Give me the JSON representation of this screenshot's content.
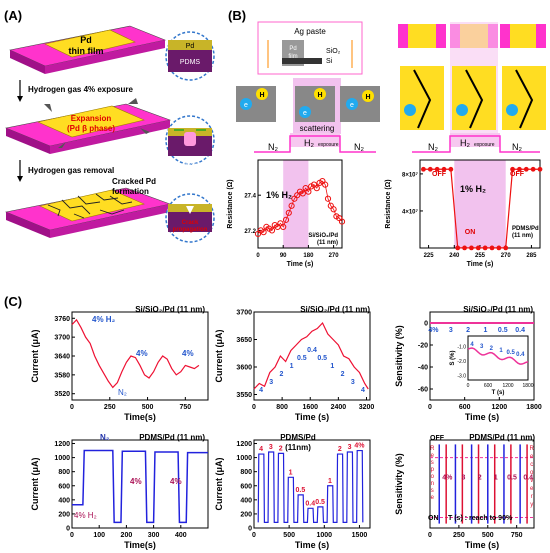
{
  "panels": {
    "A": "(A)",
    "B": "(B)",
    "C": "(C)"
  },
  "panelA": {
    "pdms": "PDMS",
    "pd_film": [
      "Pd",
      "thin film"
    ],
    "zoom_pd": "Pd",
    "zoom_pdms": "PDMS",
    "step1": "Hydrogen gas 4% exposure",
    "expansion": [
      "Expansion",
      "(Pd β phase)"
    ],
    "strain": [
      "Strain",
      "localization"
    ],
    "step2": "Hydrogen gas removal",
    "cracked": [
      "Cracked Pd",
      "formation"
    ],
    "crack_prop": [
      "Crack",
      "propagation"
    ]
  },
  "panelB": {
    "ag_paste": "Ag paste",
    "pd_film": [
      "Pd",
      "film"
    ],
    "sio2": "SiO₂",
    "si": "Si",
    "scattering": "scattering",
    "e": "e",
    "h": "H",
    "n2": "N₂",
    "h2_exposure": "H₂",
    "exposure_sub": "exposure",
    "left_chart": {
      "ylabel": "Resistance (Ω)",
      "xlabel": "Time (s)",
      "annotation": "1% H₂",
      "sample": [
        "Si/SiO₂/Pd",
        "(11 nm)"
      ]
    },
    "right_chart": {
      "ylabel": "Resistance (Ω)",
      "xlabel": "Time (s)",
      "annotation": "1% H₂",
      "off": "OFF",
      "on": "ON",
      "sample": [
        "PDMS/Pd",
        "(11 nm)"
      ]
    }
  },
  "panelC": {
    "c1": {
      "title": "Si/SiO₂/Pd (11 nm)",
      "ylabel": "Current (μA)",
      "xlabel": "Time(s)",
      "h2": "4% H₂",
      "n2": "N₂",
      "pct": "4%"
    },
    "c2": {
      "title": "Si/SiO₂/Pd (11 nm)",
      "ylabel": "Current (μA)",
      "xlabel": "Time (s)"
    },
    "c3": {
      "title": "Si/SiO₂/Pd (11 nm)",
      "ylabel": "Sensitivity (%)",
      "xlabel": "Time (s)",
      "inset_ylabel": "S (%)",
      "inset_xlabel": "T (s)"
    },
    "c4": {
      "title": "PDMS/Pd (11 nm)",
      "ylabel": "Current (μA)",
      "xlabel": "Time(s)",
      "n2": "N₂",
      "h2": "4% H₂",
      "pct": "4%"
    },
    "c5": {
      "title": "PDMS/Pd",
      "title2": "(11nm)",
      "ylabel": "Current (μA)",
      "xlabel": "Time (s)"
    },
    "c6": {
      "title": "PDMS/Pd (11 nm)",
      "off": "OFF",
      "on": "ON",
      "ylabel": "Sensitivity (%)",
      "xlabel": "Time (s)",
      "note": "T (s) : reach to 90%",
      "response": "Response",
      "recovery": "Recovery"
    }
  },
  "chart_data": [
    {
      "type": "scatter",
      "xlabel": "Time (s)",
      "ylabel": "Resistance (Ω)",
      "xlim": [
        0,
        300
      ],
      "ylim": [
        27.1,
        27.6
      ],
      "x_ticks": [
        0,
        90,
        180,
        270
      ],
      "y_ticks": [
        27.2,
        27.4
      ],
      "x": [
        0,
        10,
        20,
        30,
        40,
        50,
        60,
        70,
        80,
        90,
        100,
        110,
        120,
        130,
        140,
        150,
        160,
        170,
        180,
        190,
        200,
        210,
        220,
        230,
        240,
        250,
        260,
        270,
        280,
        290,
        300
      ],
      "y": [
        27.18,
        27.2,
        27.19,
        27.22,
        27.21,
        27.2,
        27.23,
        27.22,
        27.24,
        27.22,
        27.26,
        27.3,
        27.34,
        27.38,
        27.4,
        27.42,
        27.41,
        27.44,
        27.42,
        27.45,
        27.46,
        27.44,
        27.47,
        27.48,
        27.46,
        27.38,
        27.34,
        27.32,
        27.28,
        27.27,
        27.25
      ]
    },
    {
      "type": "scatter",
      "xlabel": "Time (s)",
      "ylabel": "Resistance (Ω)",
      "xlim": [
        220,
        290
      ],
      "ylim": [
        0,
        95000000.0
      ],
      "x_ticks": [
        225,
        240,
        255,
        270,
        285
      ],
      "y_ticks": [
        40000000.0,
        80000000.0
      ],
      "x": [
        222,
        226,
        230,
        234,
        238,
        242,
        246,
        250,
        254,
        258,
        262,
        266,
        270,
        274,
        278,
        282,
        286,
        290
      ],
      "y": [
        85000000.0,
        85000000.0,
        85000000.0,
        85000000.0,
        85000000.0,
        100000.0,
        100000.0,
        100000.0,
        100000.0,
        100000.0,
        100000.0,
        100000.0,
        100000.0,
        85000000.0,
        85000000.0,
        85000000.0,
        85000000.0,
        85000000.0
      ]
    },
    {
      "type": "line",
      "xlabel": "Time(s)",
      "ylabel": "Current (μA)",
      "xlim": [
        0,
        900
      ],
      "ylim": [
        3500,
        3780
      ],
      "x_ticks": [
        0,
        250,
        500,
        750
      ],
      "y_ticks": [
        3520,
        3580,
        3640,
        3700,
        3760
      ],
      "x": [
        0,
        30,
        60,
        90,
        120,
        150,
        180,
        210,
        240,
        270,
        300,
        330,
        360,
        390,
        420,
        450,
        480,
        510,
        540,
        570,
        600,
        630,
        660,
        690,
        720,
        750,
        780,
        810,
        840
      ],
      "y": [
        3740,
        3755,
        3730,
        3700,
        3680,
        3640,
        3610,
        3585,
        3560,
        3540,
        3555,
        3590,
        3620,
        3640,
        3635,
        3610,
        3580,
        3570,
        3590,
        3620,
        3640,
        3630,
        3600,
        3580,
        3590,
        3610,
        3605,
        3600,
        3610
      ]
    },
    {
      "type": "line",
      "xlabel": "Time (s)",
      "ylabel": "Current (μA)",
      "xlim": [
        0,
        3300
      ],
      "ylim": [
        3540,
        3700
      ],
      "x_ticks": [
        0,
        800,
        1600,
        2400,
        3200
      ],
      "y_ticks": [
        3550,
        3600,
        3650,
        3700
      ],
      "x": [
        0,
        150,
        300,
        450,
        600,
        750,
        900,
        1050,
        1200,
        1350,
        1500,
        1650,
        1800,
        1950,
        2100,
        2250,
        2400,
        2550,
        2700,
        2850,
        3000,
        3150,
        3250
      ],
      "y": [
        3560,
        3570,
        3565,
        3590,
        3600,
        3620,
        3610,
        3630,
        3640,
        3650,
        3655,
        3665,
        3670,
        3680,
        3660,
        3650,
        3640,
        3620,
        3615,
        3600,
        3590,
        3570,
        3560
      ],
      "labels": [
        "4",
        "3",
        "2",
        "1",
        "0.5",
        "0.4",
        "0.5",
        "1",
        "2",
        "3",
        "4"
      ]
    },
    {
      "type": "line",
      "xlabel": "Time (s)",
      "ylabel": "Sensitivity (%)",
      "xlim": [
        0,
        1800
      ],
      "ylim": [
        -70,
        10
      ],
      "x_ticks": [
        0,
        600,
        1200,
        1800
      ],
      "y_ticks": [
        -60,
        -40,
        -20,
        0
      ],
      "labels": [
        "4%",
        "3",
        "2",
        "1",
        "0.5",
        "0.4"
      ],
      "inset": {
        "xlabel": "T (s)",
        "ylabel": "S (%)",
        "x_ticks": [
          0,
          600,
          1200,
          1800
        ],
        "y_ticks": [
          -3.0,
          -2.0,
          -1.0
        ],
        "labels": [
          "4",
          "3",
          "2",
          "1",
          "0.5",
          "0.4"
        ]
      }
    },
    {
      "type": "line",
      "xlabel": "Time(s)",
      "ylabel": "Current (μA)",
      "xlim": [
        0,
        500
      ],
      "ylim": [
        0,
        1250
      ],
      "x_ticks": [
        0,
        100,
        200,
        300,
        400
      ],
      "y_ticks": [
        0,
        200,
        400,
        600,
        800,
        1000,
        1200
      ]
    },
    {
      "type": "line",
      "xlabel": "Time (s)",
      "ylabel": "Current (μA)",
      "xlim": [
        0,
        1650
      ],
      "ylim": [
        0,
        1250
      ],
      "x_ticks": [
        0,
        500,
        1000,
        1500
      ],
      "y_ticks": [
        0,
        200,
        400,
        600,
        800,
        1000,
        1200
      ],
      "labels": [
        "4",
        "3",
        "2",
        "1",
        "0.5",
        "0.4",
        "0.5",
        "1",
        "2",
        "3",
        "4%"
      ]
    },
    {
      "type": "line",
      "xlabel": "Time (s)",
      "ylabel": "Sensitivity (%)",
      "xlim": [
        0,
        900
      ],
      "ylim": [
        0,
        100
      ],
      "x_ticks": [
        0,
        250,
        500,
        750
      ],
      "labels": [
        "4%",
        "3",
        "2",
        "1",
        "0.5",
        "0.4"
      ]
    }
  ]
}
